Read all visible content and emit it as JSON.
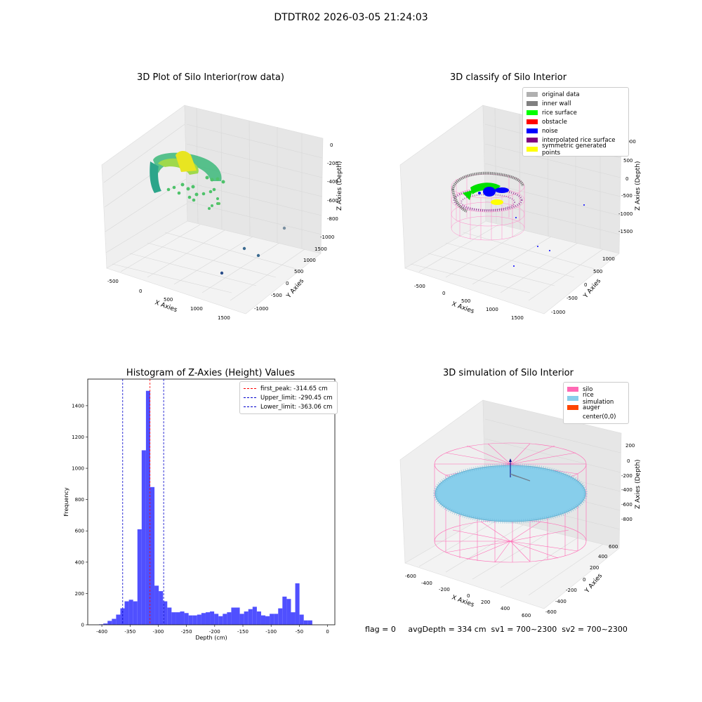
{
  "figure": {
    "suptitle": "DTDTR02 2026-03-05 21:24:03",
    "footer": "flag = 0     avgDepth = 334 cm  sv1 = 700~2300  sv2 = 700~2300"
  },
  "panels": {
    "raw": {
      "title": "3D Plot of Silo Interior(row data)",
      "xlabel": "X Axies",
      "ylabel": "Y Axies",
      "zlabel": "Z Axies (Depth)",
      "xticks": [
        "-500",
        "0",
        "500",
        "1000",
        "1500"
      ],
      "yticks": [
        "-1000",
        "-500",
        "0",
        "500",
        "1000",
        "1500"
      ],
      "zticks": [
        "0",
        "-200",
        "-400",
        "-600",
        "-800",
        "-1000"
      ]
    },
    "classify": {
      "title": "3D classify of Silo Interior",
      "xlabel": "X Axies",
      "ylabel": "Y Axies",
      "zlabel": "Z Axies (Depth)",
      "xticks": [
        "-500",
        "0",
        "500",
        "1000",
        "1500"
      ],
      "yticks": [
        "-1000",
        "-500",
        "0",
        "500",
        "1000"
      ],
      "zticks": [
        "1000",
        "500",
        "0",
        "-500",
        "-1000",
        "-1500"
      ],
      "legend": [
        {
          "label": "original data",
          "color": "#b0b0b0"
        },
        {
          "label": "inner wall",
          "color": "#808080"
        },
        {
          "label": "rice surface",
          "color": "#00ff00"
        },
        {
          "label": "obstacle",
          "color": "#ff0000"
        },
        {
          "label": "noise",
          "color": "#0000ff"
        },
        {
          "label": "interpolated rice surface",
          "color": "#800080"
        },
        {
          "label": "symmetric generated points",
          "color": "#ffff00"
        }
      ]
    },
    "histogram": {
      "title": "Histogram of Z-Axies (Height) Values",
      "xlabel": "Depth (cm)",
      "ylabel": "Frequency",
      "legend": [
        {
          "label": "first_peak: -314.65 cm",
          "color": "#ff0000"
        },
        {
          "label": "Upper_limit: -290.45 cm",
          "color": "#0000cc"
        },
        {
          "label": "Lower_limit: -363.06 cm",
          "color": "#0000cc"
        }
      ]
    },
    "simulation": {
      "title": "3D simulation of Silo Interior",
      "xlabel": "X Axies",
      "ylabel": "Y Axies",
      "zlabel": "Z Axies (Depth)",
      "xticks": [
        "-600",
        "-400",
        "-200",
        "0",
        "200",
        "400",
        "600"
      ],
      "yticks": [
        "-600",
        "-400",
        "-200",
        "0",
        "200",
        "400",
        "600"
      ],
      "zticks": [
        "200",
        "0",
        "-200",
        "-400",
        "-600",
        "-800"
      ],
      "legend": [
        {
          "label": "silo",
          "color": "#ff69b4"
        },
        {
          "label": "rice simulation",
          "color": "#87ceeb"
        },
        {
          "label": "auger",
          "color": "#ff4500"
        },
        {
          "label": "center(0,0)",
          "color": "#ffffff"
        }
      ]
    }
  },
  "chart_data": [
    {
      "type": "scatter",
      "title": "3D Plot of Silo Interior(row data)",
      "xlabel": "X Axies",
      "ylabel": "Y Axies",
      "zlabel": "Z Axies (Depth)",
      "xlim": [
        -700,
        1700
      ],
      "ylim": [
        -1200,
        1600
      ],
      "zlim": [
        -1050,
        50
      ]
    },
    {
      "type": "scatter",
      "title": "3D classify of Silo Interior",
      "series": [
        {
          "name": "original data"
        },
        {
          "name": "inner wall"
        },
        {
          "name": "rice surface"
        },
        {
          "name": "obstacle"
        },
        {
          "name": "noise"
        },
        {
          "name": "interpolated rice surface"
        },
        {
          "name": "symmetric generated points"
        }
      ]
    },
    {
      "type": "bar",
      "title": "Histogram of Z-Axies (Height) Values",
      "xlabel": "Depth (cm)",
      "ylabel": "Frequency",
      "xlim": [
        -425,
        13
      ],
      "ylim": [
        0,
        1570
      ],
      "xticks": [
        -400,
        -350,
        -300,
        -250,
        -200,
        -150,
        -100,
        -50,
        0
      ],
      "yticks": [
        0,
        200,
        400,
        600,
        800,
        1000,
        1200,
        1400
      ],
      "bin_width": 7.56,
      "bin_start": -405,
      "values": [
        3,
        8,
        25,
        38,
        65,
        105,
        150,
        160,
        150,
        610,
        1115,
        1495,
        880,
        250,
        215,
        150,
        110,
        80,
        80,
        85,
        75,
        60,
        60,
        65,
        75,
        80,
        85,
        70,
        55,
        70,
        80,
        110,
        110,
        70,
        85,
        100,
        115,
        85,
        60,
        55,
        70,
        70,
        105,
        180,
        165,
        80,
        265,
        65,
        28,
        28
      ],
      "vlines": [
        {
          "label": "first_peak: -314.65 cm",
          "x": -314.65,
          "color": "#ff0000"
        },
        {
          "label": "Upper_limit: -290.45 cm",
          "x": -290.45,
          "color": "#0000cc"
        },
        {
          "label": "Lower_limit: -363.06 cm",
          "x": -363.06,
          "color": "#0000cc"
        }
      ]
    },
    {
      "type": "scatter",
      "title": "3D simulation of Silo Interior",
      "series": [
        {
          "name": "silo"
        },
        {
          "name": "rice simulation"
        },
        {
          "name": "auger"
        },
        {
          "name": "center(0,0)"
        }
      ]
    }
  ]
}
